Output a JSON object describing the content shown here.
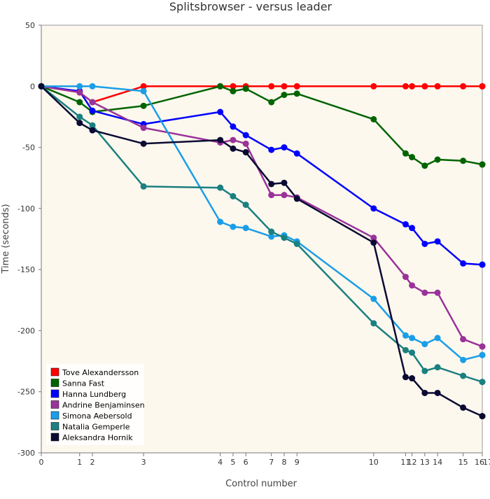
{
  "chart_data": {
    "type": "line",
    "title": "Splitsbrowser - versus leader",
    "xlabel": "Control number",
    "ylabel": "Time (seconds)",
    "xlim": [
      0,
      17
    ],
    "ylim": [
      -300,
      50
    ],
    "grid": false,
    "legend_position": "bottom-left",
    "x_ticks": [
      0,
      1,
      2,
      3,
      4,
      5,
      6,
      7,
      8,
      9,
      10,
      11,
      12,
      13,
      14,
      15,
      16,
      17
    ],
    "x_tick_positions": [
      0,
      3,
      4,
      8,
      14,
      15,
      16,
      18,
      19,
      20,
      26,
      28.5,
      29,
      30,
      31,
      33,
      34.5,
      34.5
    ],
    "x_max_position": 34.5,
    "y_ticks": [
      50,
      0,
      -50,
      -100,
      -150,
      -200,
      -250,
      -300
    ],
    "series": [
      {
        "name": "Tove Alexandersson",
        "color": "#ff0000",
        "values": [
          0,
          -5,
          -13,
          0,
          0,
          0,
          0,
          0,
          0,
          0,
          0,
          0,
          0,
          0,
          0,
          0,
          0,
          0
        ]
      },
      {
        "name": "Sanna Fast",
        "color": "#006400",
        "values": [
          0,
          -13,
          -21,
          -16,
          0,
          -4,
          -2,
          -13,
          -7,
          -6,
          -27,
          -55,
          -58,
          -65,
          -60,
          -61,
          -64,
          -64
        ]
      },
      {
        "name": "Hanna Lundberg",
        "color": "#0000ff",
        "values": [
          0,
          -4,
          -20,
          -31,
          -21,
          -33,
          -40,
          -52,
          -50,
          -55,
          -100,
          -113,
          -116,
          -129,
          -127,
          -145,
          -146,
          -146
        ]
      },
      {
        "name": "Andrine Benjaminsen",
        "color": "#993399",
        "values": [
          0,
          -5,
          -13,
          -34,
          -46,
          -44,
          -47,
          -89,
          -89,
          -91,
          -124,
          -156,
          -163,
          -169,
          -169,
          -207,
          -213,
          -213
        ]
      },
      {
        "name": "Simona Aebersold",
        "color": "#1a9ee8",
        "values": [
          0,
          0,
          0,
          -4,
          -111,
          -115,
          -116,
          -123,
          -122,
          -127,
          -174,
          -204,
          -206,
          -211,
          -206,
          -224,
          -220,
          -220
        ]
      },
      {
        "name": "Natalia Gemperle",
        "color": "#1a8080",
        "values": [
          0,
          -25,
          -32,
          -82,
          -83,
          -90,
          -97,
          -119,
          -124,
          -129,
          -194,
          -216,
          -218,
          -233,
          -230,
          -237,
          -242,
          -242
        ]
      },
      {
        "name": "Aleksandra Hornik",
        "color": "#0a0a33",
        "values": [
          0,
          -30,
          -36,
          -47,
          -44,
          -51,
          -54,
          -80,
          -79,
          -92,
          -128,
          -238,
          -239,
          -251,
          -251,
          -263,
          -270,
          -270
        ]
      }
    ]
  }
}
